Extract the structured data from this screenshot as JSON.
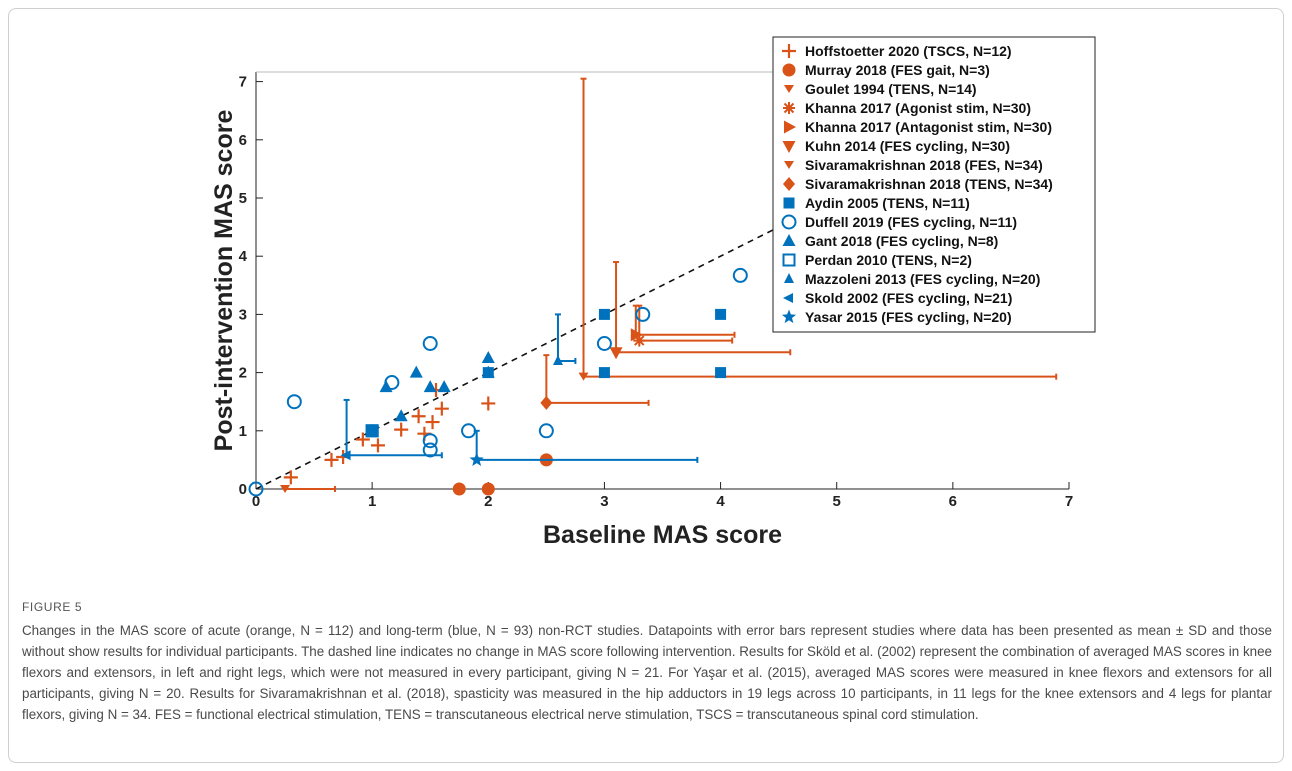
{
  "figure": {
    "label": "FIGURE 5",
    "caption": "Changes in the MAS score of acute (orange, N = 112) and long-term (blue, N = 93) non-RCT studies. Datapoints with error bars represent studies where data has been presented as mean ± SD and those without show results for individual participants. The dashed line indicates no change in MAS score following intervention. Results for Sköld et al. (2002) represent the combination of averaged MAS scores in knee flexors and extensors, in left and right legs, which were not measured in every participant, giving N = 21. For Yaşar et al. (2015), averaged MAS scores were measured in knee flexors and extensors for all participants, giving N = 20. Results for Sivaramakrishnan et al. (2018), spasticity was measured in the hip adductors in 19 legs across 10 participants, in 11 legs for the knee extensors and 4 legs for plantar flexors, giving N = 34. FES = functional electrical stimulation, TENS = transcutaneous electrical nerve stimulation, TSCS = transcutaneous spinal cord stimulation."
  },
  "colors": {
    "orange": "#d95319",
    "blue": "#0072bd"
  },
  "chart_data": {
    "type": "scatter",
    "xlabel": "Baseline MAS score",
    "ylabel": "Post-intervention MAS score",
    "xlim": [
      0,
      7
    ],
    "ylim": [
      0,
      7.5
    ],
    "xticks": [
      0,
      1,
      2,
      3,
      4,
      5,
      6,
      7
    ],
    "yticks": [
      0,
      1,
      2,
      3,
      4,
      5,
      6,
      7
    ],
    "grid": false,
    "legend_position": "top-right",
    "reference_line": {
      "style": "dashed",
      "meaning": "no change (y = x)"
    },
    "series": [
      {
        "name": "Hoffstoetter 2020 (TSCS, N=12)",
        "color": "orange",
        "marker": "plus",
        "points": [
          [
            0.3,
            0.2
          ],
          [
            0.65,
            0.5
          ],
          [
            0.75,
            0.55
          ],
          [
            0.92,
            0.85
          ],
          [
            1.05,
            0.75
          ],
          [
            1.25,
            1.02
          ],
          [
            1.4,
            1.25
          ],
          [
            1.45,
            0.95
          ],
          [
            1.52,
            1.15
          ],
          [
            1.6,
            1.38
          ],
          [
            1.55,
            1.7
          ],
          [
            2.0,
            1.47
          ]
        ]
      },
      {
        "name": "Murray 2018 (FES gait, N=3)",
        "color": "orange",
        "marker": "circle-filled",
        "points": [
          [
            1.75,
            0.0
          ],
          [
            2.0,
            0.0
          ],
          [
            2.5,
            0.5
          ]
        ]
      },
      {
        "name": "Goulet 1994 (TENS, N=14)",
        "color": "orange",
        "marker": "tick-down",
        "points": [
          [
            0.25,
            0.0
          ]
        ],
        "sd_x": [
          0.43
        ],
        "sd_y": [
          0
        ]
      },
      {
        "name": "Khanna 2017 (Agonist stim, N=30)",
        "color": "orange",
        "marker": "star",
        "points": [
          [
            3.3,
            2.55
          ]
        ],
        "sd_x": [
          0.8
        ],
        "sd_y": [
          0.6
        ]
      },
      {
        "name": "Khanna 2017 (Antagonist stim, N=30)",
        "color": "orange",
        "marker": "triangle-right",
        "points": [
          [
            3.27,
            2.65
          ]
        ],
        "sd_x": [
          0.85
        ],
        "sd_y": [
          0.5
        ]
      },
      {
        "name": "Kuhn 2014 (FES cycling, N=30)",
        "color": "orange",
        "marker": "triangle-down",
        "points": [
          [
            3.1,
            2.35
          ]
        ],
        "sd_x": [
          1.5
        ],
        "sd_y": [
          1.55
        ]
      },
      {
        "name": "Sivaramakrishnan 2018 (FES, N=34)",
        "color": "orange",
        "marker": "tick-down",
        "points": [
          [
            2.82,
            1.93
          ]
        ],
        "sd_x": [
          4.07
        ],
        "sd_y": [
          5.12
        ]
      },
      {
        "name": "Sivaramakrishnan 2018 (TENS, N=34)",
        "color": "orange",
        "marker": "diamond",
        "points": [
          [
            2.5,
            1.48
          ]
        ],
        "sd_x": [
          0.88
        ],
        "sd_y": [
          0.82
        ]
      },
      {
        "name": "Aydin 2005 (TENS, N=11)",
        "color": "blue",
        "marker": "square-filled",
        "points": [
          [
            1.0,
            1.0
          ],
          [
            2.0,
            2.0
          ],
          [
            3.0,
            3.0
          ],
          [
            3.0,
            2.0
          ],
          [
            4.0,
            3.0
          ],
          [
            4.0,
            2.0
          ]
        ]
      },
      {
        "name": "Duffell 2019 (FES cycling, N=11)",
        "color": "blue",
        "marker": "circle-open",
        "points": [
          [
            0.0,
            0.0
          ],
          [
            0.33,
            1.5
          ],
          [
            1.17,
            1.83
          ],
          [
            1.5,
            2.5
          ],
          [
            1.5,
            0.83
          ],
          [
            1.5,
            0.67
          ],
          [
            1.83,
            1.0
          ],
          [
            2.5,
            1.0
          ],
          [
            3.0,
            2.5
          ],
          [
            3.33,
            3.0
          ],
          [
            4.17,
            3.67
          ]
        ]
      },
      {
        "name": "Gant 2018 (FES cycling, N=8)",
        "color": "blue",
        "marker": "triangle-up",
        "points": [
          [
            1.0,
            1.0
          ],
          [
            1.12,
            1.75
          ],
          [
            1.25,
            1.25
          ],
          [
            1.38,
            2.0
          ],
          [
            1.5,
            1.75
          ],
          [
            1.62,
            1.75
          ],
          [
            2.0,
            2.25
          ],
          [
            2.0,
            2.0
          ]
        ]
      },
      {
        "name": "Perdan 2010 (TENS, N=2)",
        "color": "blue",
        "marker": "square-open",
        "points": [
          [
            1.0,
            1.0
          ],
          [
            1.0,
            1.0
          ]
        ]
      },
      {
        "name": "Mazzoleni 2013 (FES cycling, N=20)",
        "color": "blue",
        "marker": "tick-up",
        "points": [
          [
            2.6,
            2.2
          ]
        ],
        "sd_x": [
          0.15
        ],
        "sd_y": [
          0.8
        ]
      },
      {
        "name": "Skold 2002 (FES cycling, N=21)",
        "color": "blue",
        "marker": "tick-left",
        "points": [
          [
            0.78,
            0.58
          ]
        ],
        "sd_x": [
          0.82
        ],
        "sd_y": [
          0.95
        ]
      },
      {
        "name": "Yasar 2015 (FES cycling, N=20)",
        "color": "blue",
        "marker": "pentagram",
        "points": [
          [
            1.9,
            0.5
          ]
        ],
        "sd_x": [
          1.9
        ],
        "sd_y": [
          0.5
        ]
      }
    ]
  }
}
